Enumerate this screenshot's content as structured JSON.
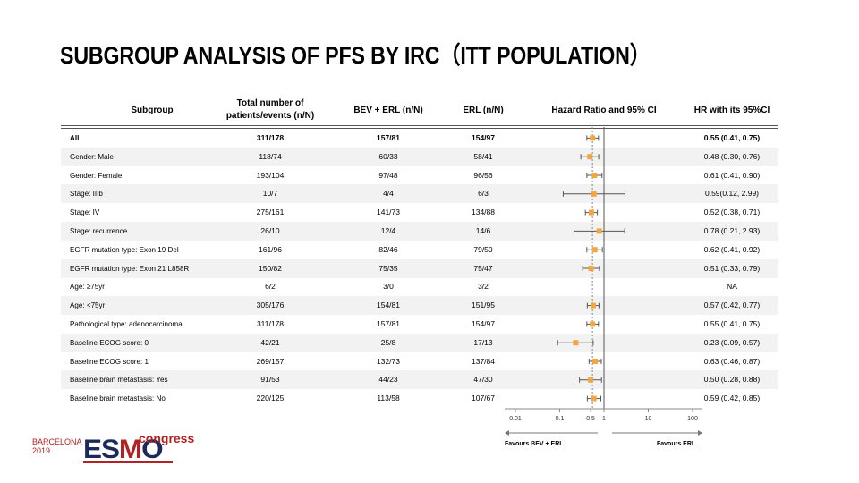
{
  "title": "SUBGROUP ANALYSIS OF PFS BY IRC（ITT POPULATION）",
  "headers": {
    "subgroup": "Subgroup",
    "total_line1": "Total number of",
    "total_line2": "patients/events  (n/N)",
    "bev_erl": "BEV + ERL (n/N)",
    "erl": "ERL (n/N)",
    "hr_ci": "Hazard  Ratio and 95% CI",
    "hr_text": "HR with its 95%CI"
  },
  "rows": [
    {
      "subgroup": "All",
      "total": "311/178",
      "bev_erl": "157/81",
      "erl": "154/97",
      "hr_text": "0.55 (0.41, 0.75)"
    },
    {
      "subgroup": "Gender: Male",
      "total": "118/74",
      "bev_erl": "60/33",
      "erl": "58/41",
      "hr_text": "0.48 (0.30, 0.76)"
    },
    {
      "subgroup": "Gender: Female",
      "total": "193/104",
      "bev_erl": "97/48",
      "erl": "96/56",
      "hr_text": "0.61 (0.41, 0.90)"
    },
    {
      "subgroup": "Stage:  IIIb",
      "total": "10/7",
      "bev_erl": "4/4",
      "erl": "6/3",
      "hr_text": "0.59(0.12, 2.99)"
    },
    {
      "subgroup": "Stage:  IV",
      "total": "275/161",
      "bev_erl": "141/73",
      "erl": "134/88",
      "hr_text": "0.52 (0.38, 0.71)"
    },
    {
      "subgroup": "Stage:  recurrence",
      "total": "26/10",
      "bev_erl": "12/4",
      "erl": "14/6",
      "hr_text": "0.78 (0.21, 2.93)"
    },
    {
      "subgroup": "EGFR mutation  type: Exon 19 Del",
      "total": "161/96",
      "bev_erl": "82/46",
      "erl": "79/50",
      "hr_text": "0.62 (0.41, 0.92)"
    },
    {
      "subgroup": "EGFR mutation  type: Exon 21 L858R",
      "total": "150/82",
      "bev_erl": "75/35",
      "erl": "75/47",
      "hr_text": "0.51 (0.33, 0.79)"
    },
    {
      "subgroup": "Age: ≥75yr",
      "total": "6/2",
      "bev_erl": "3/0",
      "erl": "3/2",
      "hr_text": "NA"
    },
    {
      "subgroup": "Age: <75yr",
      "total": "305/176",
      "bev_erl": "154/81",
      "erl": "151/95",
      "hr_text": "0.57 (0.42, 0.77)"
    },
    {
      "subgroup": "Pathological type: adenocarcinoma",
      "total": "311/178",
      "bev_erl": "157/81",
      "erl": "154/97",
      "hr_text": "0.55 (0.41, 0.75)"
    },
    {
      "subgroup": "Baseline ECOG score: 0",
      "total": "42/21",
      "bev_erl": "25/8",
      "erl": "17/13",
      "hr_text": "0.23 (0.09, 0.57)"
    },
    {
      "subgroup": "Baseline ECOG score: 1",
      "total": "269/157",
      "bev_erl": "132/73",
      "erl": "137/84",
      "hr_text": "0.63 (0.46, 0.87)"
    },
    {
      "subgroup": "Baseline brain metastasis: Yes",
      "total": "91/53",
      "bev_erl": "44/23",
      "erl": "47/30",
      "hr_text": "0.50 (0.28, 0.88)"
    },
    {
      "subgroup": "Baseline brain metastasis: No",
      "total": "220/125",
      "bev_erl": "113/58",
      "erl": "107/67",
      "hr_text": "0.59 (0.42, 0.85)"
    }
  ],
  "chart_data": {
    "type": "forest",
    "x_scale": "log",
    "xlim": [
      0.01,
      100
    ],
    "ticks": [
      0.01,
      0.1,
      0.5,
      1,
      10,
      100
    ],
    "tick_labels": [
      "0.01",
      "0.1",
      "0.5",
      "1",
      "10",
      "100"
    ],
    "reference_line": 1,
    "dashed_line": 0.55,
    "favours_left": "Favours  BEV + ERL",
    "favours_right": "Favours  ERL",
    "marker_color": "#f4a640",
    "points": [
      {
        "hr": 0.55,
        "lo": 0.41,
        "hi": 0.75
      },
      {
        "hr": 0.48,
        "lo": 0.3,
        "hi": 0.76
      },
      {
        "hr": 0.61,
        "lo": 0.41,
        "hi": 0.9
      },
      {
        "hr": 0.59,
        "lo": 0.12,
        "hi": 2.99
      },
      {
        "hr": 0.52,
        "lo": 0.38,
        "hi": 0.71
      },
      {
        "hr": 0.78,
        "lo": 0.21,
        "hi": 2.93
      },
      {
        "hr": 0.62,
        "lo": 0.41,
        "hi": 0.92
      },
      {
        "hr": 0.51,
        "lo": 0.33,
        "hi": 0.79
      },
      null,
      {
        "hr": 0.57,
        "lo": 0.42,
        "hi": 0.77
      },
      {
        "hr": 0.55,
        "lo": 0.41,
        "hi": 0.75
      },
      {
        "hr": 0.23,
        "lo": 0.09,
        "hi": 0.57
      },
      {
        "hr": 0.63,
        "lo": 0.46,
        "hi": 0.87
      },
      {
        "hr": 0.5,
        "lo": 0.28,
        "hi": 0.88
      },
      {
        "hr": 0.59,
        "lo": 0.42,
        "hi": 0.85
      }
    ]
  },
  "logo": {
    "city": "BARCELONA",
    "year": "2019",
    "esmo_part1": "ES",
    "esmo_part2": "M",
    "esmo_part3": "O",
    "congress": "congress",
    "accent_color": "#b22222",
    "navy_color": "#1b2a5a"
  }
}
